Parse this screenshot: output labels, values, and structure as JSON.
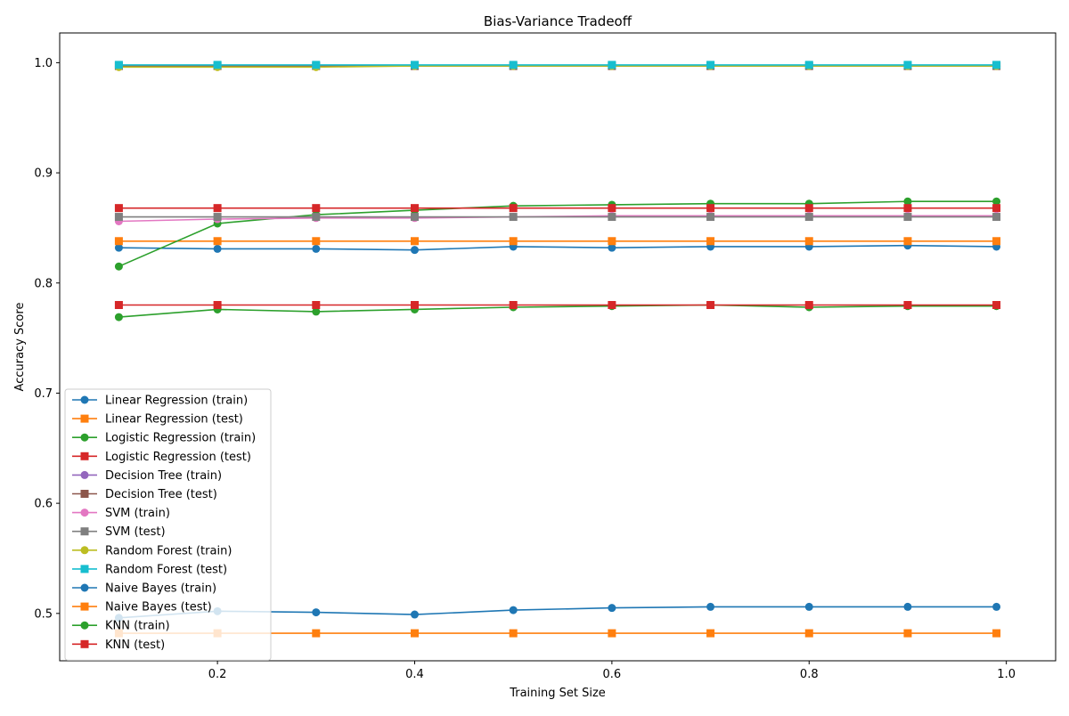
{
  "chart_data": {
    "type": "line",
    "title": "Bias-Variance Tradeoff",
    "xlabel": "Training Set Size",
    "ylabel": "Accuracy Score",
    "xlim": [
      0.04,
      1.05
    ],
    "ylim": [
      0.457,
      1.027
    ],
    "x_ticks": [
      0.2,
      0.4,
      0.6,
      0.8,
      1.0
    ],
    "x_tick_labels": [
      "0.2",
      "0.4",
      "0.6",
      "0.8",
      "1.0"
    ],
    "y_ticks": [
      0.5,
      0.6,
      0.7,
      0.8,
      0.9,
      1.0
    ],
    "y_tick_labels": [
      "0.5",
      "0.6",
      "0.7",
      "0.8",
      "0.9",
      "1.0"
    ],
    "grid": false,
    "legend_position": "lower-left",
    "x": [
      0.1,
      0.2,
      0.3,
      0.4,
      0.5,
      0.6,
      0.7,
      0.8,
      0.9,
      0.99
    ],
    "series": [
      {
        "name": "Linear Regression (train)",
        "color": "#1f77b4",
        "marker": "circle",
        "values": [
          0.832,
          0.831,
          0.831,
          0.83,
          0.833,
          0.832,
          0.833,
          0.833,
          0.834,
          0.833
        ]
      },
      {
        "name": "Linear Regression (test)",
        "color": "#ff7f0e",
        "marker": "square",
        "values": [
          0.838,
          0.838,
          0.838,
          0.838,
          0.838,
          0.838,
          0.838,
          0.838,
          0.838,
          0.838
        ]
      },
      {
        "name": "Logistic Regression (train)",
        "color": "#2ca02c",
        "marker": "circle",
        "values": [
          0.815,
          0.854,
          0.862,
          0.866,
          0.87,
          0.871,
          0.872,
          0.872,
          0.874,
          0.874
        ]
      },
      {
        "name": "Logistic Regression (test)",
        "color": "#d62728",
        "marker": "square",
        "values": [
          0.868,
          0.868,
          0.868,
          0.868,
          0.868,
          0.868,
          0.868,
          0.868,
          0.868,
          0.868
        ]
      },
      {
        "name": "Decision Tree (train)",
        "color": "#9467bd",
        "marker": "circle",
        "values": [
          0.997,
          0.997,
          0.997,
          0.997,
          0.997,
          0.997,
          0.997,
          0.997,
          0.997,
          0.997
        ]
      },
      {
        "name": "Decision Tree (test)",
        "color": "#8c564b",
        "marker": "square",
        "values": [
          0.997,
          0.997,
          0.997,
          0.997,
          0.997,
          0.997,
          0.997,
          0.997,
          0.997,
          0.997
        ]
      },
      {
        "name": "SVM (train)",
        "color": "#e377c2",
        "marker": "circle",
        "values": [
          0.856,
          0.858,
          0.859,
          0.859,
          0.86,
          0.861,
          0.861,
          0.861,
          0.861,
          0.861
        ]
      },
      {
        "name": "SVM (test)",
        "color": "#7f7f7f",
        "marker": "square",
        "values": [
          0.86,
          0.86,
          0.86,
          0.86,
          0.86,
          0.86,
          0.86,
          0.86,
          0.86,
          0.86
        ]
      },
      {
        "name": "Random Forest (train)",
        "color": "#bcbd22",
        "marker": "circle",
        "values": [
          0.996,
          0.996,
          0.996,
          0.997,
          0.997,
          0.997,
          0.997,
          0.997,
          0.997,
          0.997
        ]
      },
      {
        "name": "Random Forest (test)",
        "color": "#17becf",
        "marker": "square",
        "values": [
          0.998,
          0.998,
          0.998,
          0.998,
          0.998,
          0.998,
          0.998,
          0.998,
          0.998,
          0.998
        ]
      },
      {
        "name": "Naive Bayes (train)",
        "color": "#1f77b4",
        "marker": "circle",
        "values": [
          0.496,
          0.502,
          0.501,
          0.499,
          0.503,
          0.505,
          0.506,
          0.506,
          0.506,
          0.506
        ]
      },
      {
        "name": "Naive Bayes (test)",
        "color": "#ff7f0e",
        "marker": "square",
        "values": [
          0.482,
          0.482,
          0.482,
          0.482,
          0.482,
          0.482,
          0.482,
          0.482,
          0.482,
          0.482
        ]
      },
      {
        "name": "KNN (train)",
        "color": "#2ca02c",
        "marker": "circle",
        "values": [
          0.769,
          0.776,
          0.774,
          0.776,
          0.778,
          0.779,
          0.78,
          0.778,
          0.779,
          0.779
        ]
      },
      {
        "name": "KNN (test)",
        "color": "#d62728",
        "marker": "square",
        "values": [
          0.78,
          0.78,
          0.78,
          0.78,
          0.78,
          0.78,
          0.78,
          0.78,
          0.78,
          0.78
        ]
      }
    ]
  }
}
